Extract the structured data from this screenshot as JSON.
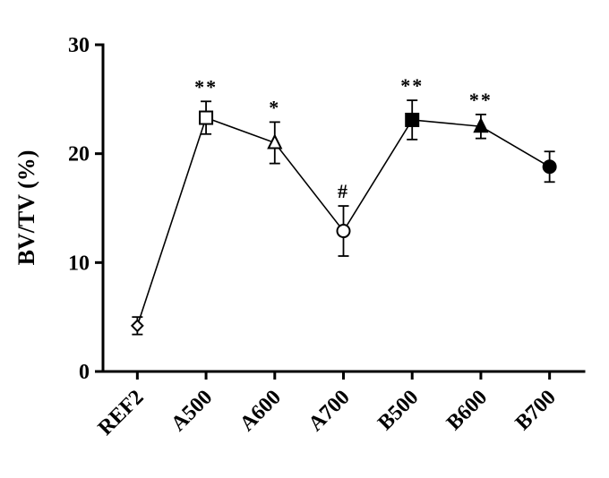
{
  "chart_data": {
    "type": "line",
    "title": "",
    "xlabel": "",
    "ylabel": "BV/TV (%)",
    "ylim": [
      0,
      30
    ],
    "yticks": [
      0,
      10,
      20,
      30
    ],
    "categories": [
      "REF2",
      "A500",
      "A600",
      "A700",
      "B500",
      "B600",
      "B700"
    ],
    "series": [
      {
        "name": "BV/TV",
        "values": [
          4.2,
          23.3,
          21.0,
          12.9,
          23.1,
          22.5,
          18.8
        ],
        "errors": [
          0.8,
          1.5,
          1.9,
          2.3,
          1.8,
          1.1,
          1.4
        ],
        "markers": [
          "diamond-open",
          "square-open",
          "triangle-open",
          "circle-open",
          "square-filled",
          "triangle-filled",
          "circle-filled"
        ],
        "annotations": [
          "",
          "**",
          "*",
          "#",
          "**",
          "**",
          ""
        ]
      }
    ],
    "grid": false,
    "legend": "none",
    "colors": {
      "line": "#000000",
      "axis": "#000000",
      "marker_fill_open": "#ffffff",
      "marker_fill_solid": "#000000",
      "background": "#ffffff"
    }
  }
}
